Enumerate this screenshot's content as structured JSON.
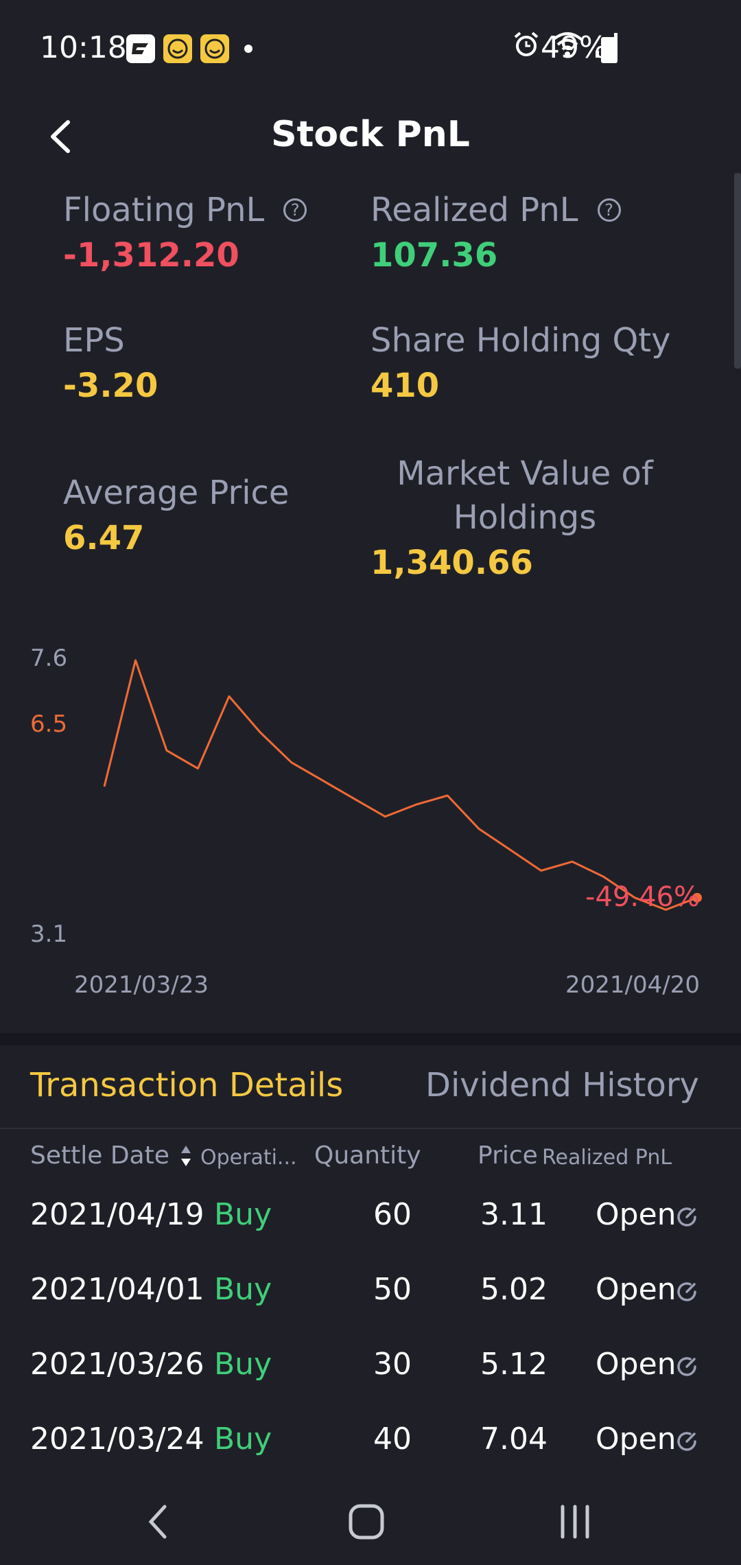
{
  "status_bar": {
    "time": "10:18",
    "battery": "49%",
    "icons": [
      "notification-app-icon",
      "emoji-icon",
      "emoji-icon",
      "alarm-icon",
      "wifi-icon",
      "signal-icon",
      "battery-charging-icon"
    ]
  },
  "header": {
    "title": "Stock PnL"
  },
  "stats": {
    "floating_pnl": {
      "label": "Floating PnL",
      "value": "-1,312.20"
    },
    "realized_pnl": {
      "label": "Realized PnL",
      "value": "107.36"
    },
    "eps": {
      "label": "EPS",
      "value": "-3.20"
    },
    "share_qty": {
      "label": "Share Holding Qty",
      "value": "410"
    },
    "avg_price": {
      "label": "Average Price",
      "value": "6.47"
    },
    "market_value": {
      "label_line1": "Market Value of",
      "label_line2": "Holdings",
      "value": "1,340.66"
    }
  },
  "chart_data": {
    "type": "line",
    "y_tick_top": "7.6",
    "y_tick_ref": "6.5",
    "y_tick_bottom": "3.1",
    "x_start_label": "2021/03/23",
    "x_end_label": "2021/04/20",
    "change_label": "-49.46%",
    "ylim": [
      3.1,
      7.6
    ],
    "reference_value": 6.5,
    "series": [
      {
        "values": [
          5.5,
          7.6,
          6.1,
          5.8,
          7.0,
          6.4,
          5.9,
          5.6,
          5.3,
          5.0,
          5.2,
          5.35,
          4.8,
          4.45,
          4.1,
          4.25,
          4.0,
          3.65,
          3.45,
          3.65
        ]
      }
    ]
  },
  "tabs": {
    "active": "Transaction Details",
    "inactive": "Dividend History"
  },
  "table": {
    "headers": {
      "settle_date": "Settle Date",
      "operation": "Operati...",
      "quantity": "Quantity",
      "price": "Price",
      "realized_pnl": "Realized PnL"
    },
    "rows": [
      {
        "date": "2021/04/19",
        "op": "Buy",
        "qty": "60",
        "price": "3.11",
        "pnl": "Open"
      },
      {
        "date": "2021/04/01",
        "op": "Buy",
        "qty": "50",
        "price": "5.02",
        "pnl": "Open"
      },
      {
        "date": "2021/03/26",
        "op": "Buy",
        "qty": "30",
        "price": "5.12",
        "pnl": "Open"
      },
      {
        "date": "2021/03/24",
        "op": "Buy",
        "qty": "40",
        "price": "7.04",
        "pnl": "Open"
      }
    ]
  },
  "colors": {
    "background": "#1f2027",
    "line": "#f06a36",
    "negative": "#f0505f",
    "positive": "#3fcf7a",
    "highlight": "#f5c842"
  }
}
